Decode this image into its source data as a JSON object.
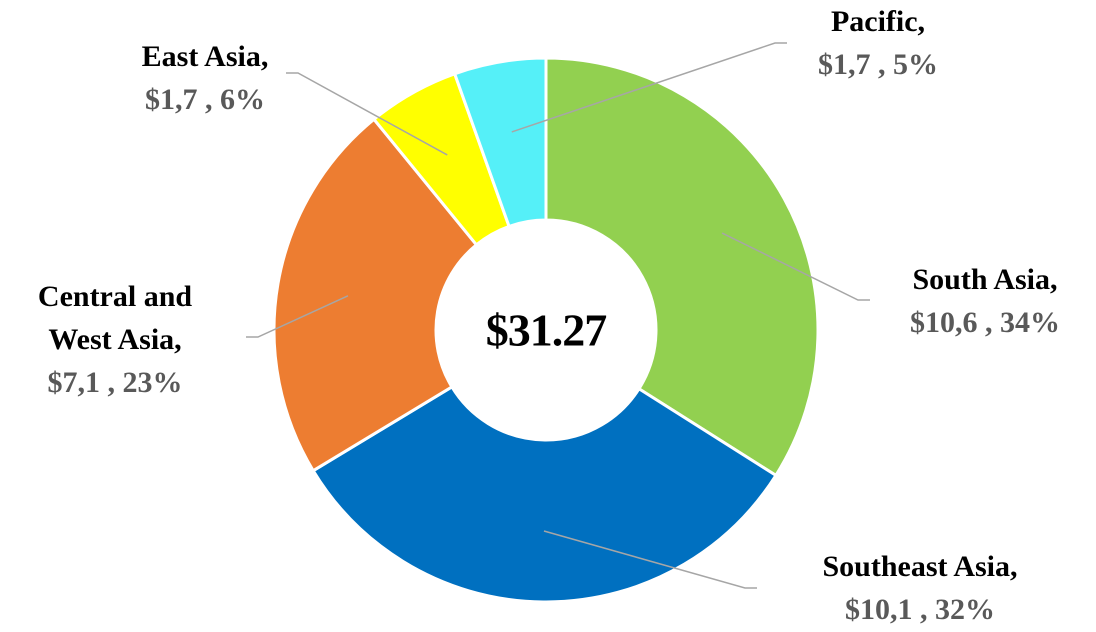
{
  "chart_data": {
    "type": "donut",
    "center_label": "$31.27",
    "categories": [
      "South Asia,",
      "Southeast Asia,",
      "Central and West Asia,",
      "East Asia,",
      "Pacific,"
    ],
    "values": [
      10.6,
      10.1,
      7.1,
      1.7,
      1.7
    ],
    "value_labels": [
      "$10,6 , 34%",
      "$10,1 , 32%",
      "$7,1 , 23%",
      "$1,7 , 6%",
      "$1,7 , 5%"
    ],
    "colors": [
      "#92d050",
      "#0070c0",
      "#ed7d31",
      "#ffff00",
      "#55f0f8"
    ]
  }
}
